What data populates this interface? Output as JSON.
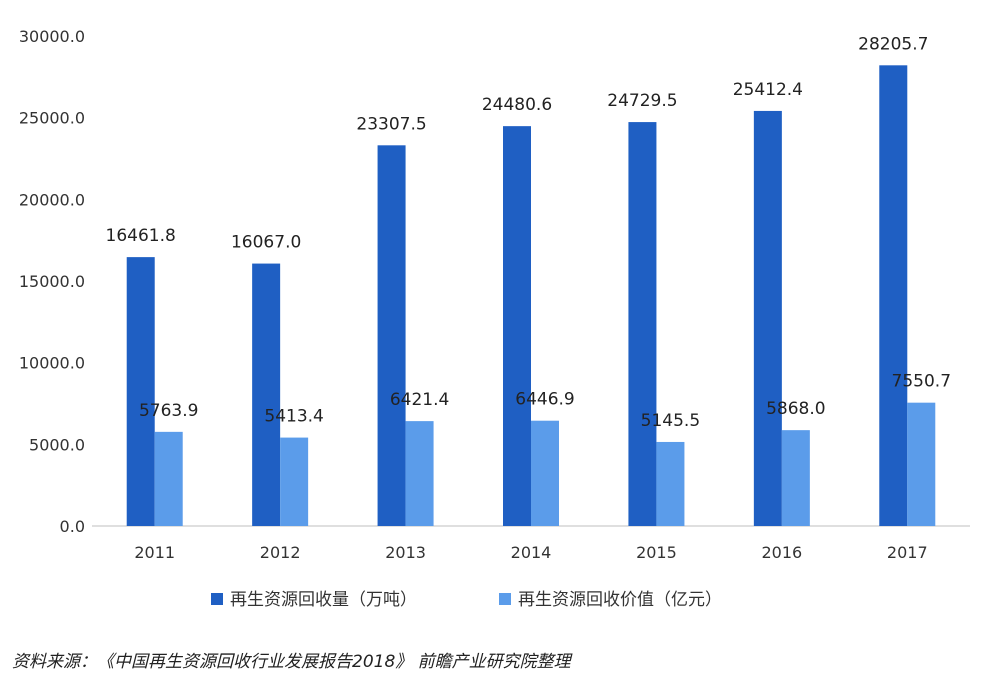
{
  "colors": {
    "series_0": "#1f5fc3",
    "series_1": "#5b9cea",
    "axis": "#bfbfbf",
    "text": "#333333"
  },
  "chart_data": {
    "type": "bar",
    "categories": [
      "2011",
      "2012",
      "2013",
      "2014",
      "2015",
      "2016",
      "2017"
    ],
    "series": [
      {
        "name": "再生资源回收量（万吨）",
        "values": [
          16461.8,
          16067.0,
          23307.5,
          24480.6,
          24729.5,
          25412.4,
          28205.7
        ],
        "labels": [
          "16461.8",
          "16067.0",
          "23307.5",
          "24480.6",
          "24729.5",
          "25412.4",
          "28205.7"
        ]
      },
      {
        "name": "再生资源回收价值（亿元）",
        "values": [
          5763.9,
          5413.4,
          6421.4,
          6446.9,
          5145.5,
          5868.0,
          7550.7
        ],
        "labels": [
          "5763.9",
          "5413.4",
          "6421.4",
          "6446.9",
          "5145.5",
          "5868.0",
          "7550.7"
        ]
      }
    ],
    "ylim": [
      0,
      30000
    ],
    "yticks": [
      "0.0",
      "5000.0",
      "10000.0",
      "15000.0",
      "20000.0",
      "25000.0",
      "30000.0"
    ],
    "ytick_values": [
      0,
      5000,
      10000,
      15000,
      20000,
      25000,
      30000
    ],
    "grid": false,
    "legend_position": "bottom"
  },
  "source_note": "资料来源：《中国再生资源回收行业发展报告2018》 前瞻产业研究院整理"
}
